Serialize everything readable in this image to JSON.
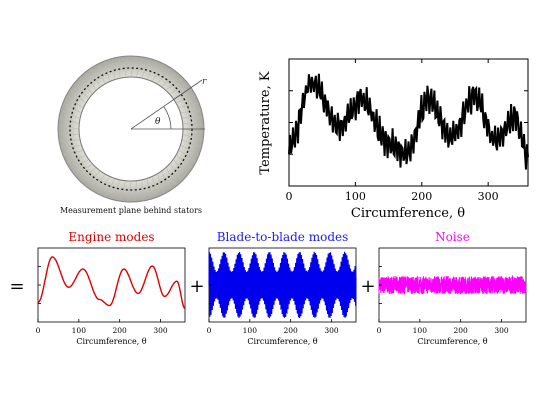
{
  "ring": {
    "caption": "Measurement plane behind stators",
    "label_r": "r",
    "label_theta": "θ"
  },
  "main_chart": {
    "ylabel": "Temperature, K",
    "xlabel": "Circumference, θ",
    "xticks": [
      "0",
      "100",
      "200",
      "300"
    ]
  },
  "decomposition": {
    "equals": "=",
    "plus": "+"
  },
  "panels": [
    {
      "id": "engine",
      "title": "Engine modes",
      "title_color": "#e00000",
      "line_color": "#e00000",
      "xlabel": "Circumference, θ",
      "xticks": [
        "0",
        "100",
        "200",
        "300"
      ]
    },
    {
      "id": "blade",
      "title": "Blade-to-blade modes",
      "title_color": "#1a1aff",
      "line_color": "#0000ee",
      "xlabel": "Circumference, θ",
      "xticks": [
        "0",
        "100",
        "200",
        "300"
      ]
    },
    {
      "id": "noise",
      "title": "Noise",
      "title_color": "#ff00ff",
      "line_color": "#ff00ff",
      "xlabel": "Circumference, θ",
      "xticks": [
        "0",
        "100",
        "200",
        "300"
      ]
    }
  ],
  "chart_data": [
    {
      "type": "line",
      "xlabel": "Circumference, θ",
      "ylabel": "Temperature, K",
      "xlim": [
        0,
        360
      ],
      "series": [
        {
          "values_by_function": "engine + blade + noise",
          "x_range": [
            0,
            360
          ]
        }
      ]
    },
    {
      "type": "line",
      "title": "Engine modes",
      "xlabel": "Circumference, θ",
      "xlim": [
        0,
        360
      ],
      "series": [
        {
          "x": [
            0,
            35,
            75,
            110,
            150,
            175,
            210,
            245,
            280,
            310,
            340,
            360
          ],
          "y": [
            0.2,
            0.95,
            0.45,
            0.75,
            0.25,
            0.15,
            0.75,
            0.35,
            0.8,
            0.3,
            0.55,
            0.1
          ]
        }
      ]
    },
    {
      "type": "line",
      "title": "Blade-to-blade modes",
      "xlabel": "Circumference, θ",
      "xlim": [
        0,
        360
      ],
      "series": [
        {
          "description_values": "oscillation about 0.5 with amplitude ~0.45, ~3.5 cycles per 10 units of θ"
        }
      ]
    },
    {
      "type": "line",
      "title": "Noise",
      "xlabel": "Circumference, θ",
      "xlim": [
        0,
        360
      ],
      "series": [
        {
          "description_values": "random noise band about 0.5 with amplitude ~0.12"
        }
      ]
    }
  ]
}
